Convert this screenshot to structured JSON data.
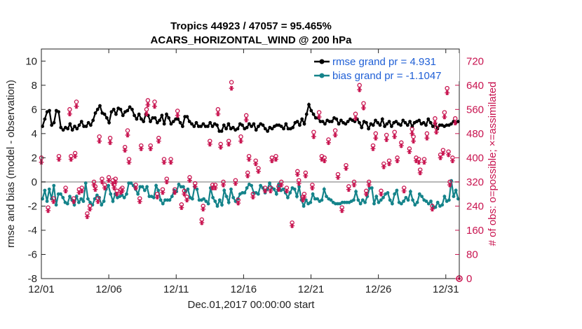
{
  "chart_data": {
    "type": "line",
    "title_line1": "Tropics 44923 / 47057 = 95.465%",
    "title_line2": "ACARS_HORIZONTAL_WIND @ 200 hPa",
    "xlabel": "Dec.01,2017 00:00:00 start",
    "ylabel": "rmse and bias (model - observation)",
    "ylabel_right": "# of obs: o=possible; ×=assimilated",
    "x_ticks": [
      "12/01",
      "12/06",
      "12/11",
      "12/16",
      "12/21",
      "12/26",
      "12/31"
    ],
    "x_tick_days": [
      0,
      5,
      10,
      15,
      20,
      25,
      30
    ],
    "xlim": [
      0,
      31
    ],
    "ylim": [
      -8,
      11
    ],
    "y_ticks": [
      "-8",
      "-6",
      "-4",
      "-2",
      "0",
      "2",
      "4",
      "6",
      "8",
      "10"
    ],
    "y2lim": [
      0,
      760
    ],
    "y2_ticks": [
      "0",
      "80",
      "160",
      "240",
      "320",
      "400",
      "480",
      "560",
      "640",
      "720"
    ],
    "legend": [
      "rmse grand pr = 4.931",
      "bias grand pr = -1.1047"
    ],
    "series": [
      {
        "name": "rmse",
        "color": "#000000",
        "values": [
          4.6,
          5.2,
          5.8,
          5.9,
          4.7,
          4.9,
          5.9,
          5.8,
          4.5,
          4.3,
          4.5,
          4.4,
          4.8,
          4.3,
          4.6,
          4.4,
          4.7,
          5.0,
          4.6,
          4.6,
          4.9,
          4.7,
          5.1,
          5.7,
          6.0,
          6.3,
          5.7,
          5.6,
          5.3,
          4.9,
          5.8,
          6.0,
          5.6,
          6.1,
          6.0,
          5.5,
          5.8,
          5.9,
          6.2,
          6.0,
          5.5,
          5.2,
          5.6,
          5.2,
          5.0,
          5.6,
          5.5,
          5.0,
          5.3,
          5.3,
          4.9,
          5.1,
          5.5,
          4.8,
          5.6,
          5.3,
          4.8,
          5.0,
          5.2,
          5.2,
          4.9,
          4.6,
          5.4,
          5.4,
          5.0,
          4.8,
          4.6,
          4.9,
          4.6,
          4.6,
          4.8,
          4.6,
          4.6,
          4.9,
          4.6,
          4.8,
          4.7,
          4.2,
          4.2,
          4.7,
          4.4,
          4.8,
          4.4,
          4.5,
          4.3,
          4.4,
          4.8,
          4.7,
          4.4,
          4.5,
          4.8,
          4.6,
          4.8,
          4.3,
          4.6,
          4.8,
          4.7,
          4.4,
          4.2,
          4.5,
          4.4,
          4.6,
          4.7,
          4.7,
          4.6,
          4.4,
          4.8,
          4.4,
          4.4,
          4.5,
          4.9,
          5.0,
          4.7,
          5.2,
          4.8,
          5.6,
          6.4,
          5.9,
          5.6,
          5.3,
          5.3,
          5.0,
          5.0,
          4.8,
          5.1,
          5.0,
          5.0,
          5.3,
          5.2,
          4.8,
          5.1,
          4.9,
          4.8,
          5.0,
          5.2,
          5.1,
          5.0,
          5.2,
          4.9,
          4.5,
          5.0,
          4.9,
          4.4,
          4.8,
          4.7,
          5.1,
          4.9,
          4.7,
          5.2,
          4.6,
          4.8,
          5.0,
          4.6,
          4.9,
          5.0,
          4.8,
          4.7,
          5.1,
          4.9,
          4.7,
          5.0,
          4.6,
          4.9,
          5.0,
          5.1,
          4.8,
          4.9,
          4.7,
          5.2,
          4.9,
          4.6,
          4.8,
          4.4,
          4.7,
          4.7,
          4.6,
          4.7,
          4.7,
          4.8,
          5.0,
          4.9,
          5.0
        ]
      },
      {
        "name": "bias",
        "color": "#14838a",
        "values": [
          -1.4,
          -0.7,
          -1.6,
          -0.6,
          -1.4,
          -0.3,
          -1.9,
          -1.0,
          -1.0,
          -1.3,
          -1.7,
          -1.8,
          -1.2,
          -1.5,
          -1.9,
          -1.2,
          -1.7,
          -1.4,
          -1.6,
          -0.1,
          -1.4,
          -1.7,
          -1.9,
          -1.4,
          -1.1,
          -1.3,
          -1.9,
          -1.6,
          -0.6,
          -0.3,
          -1.0,
          -1.6,
          -1.0,
          -1.3,
          -1.2,
          -1.1,
          -1.3,
          -1.0,
          -0.1,
          -0.1,
          -0.3,
          -0.6,
          -1.0,
          -0.4,
          -0.4,
          -0.7,
          -0.4,
          -1.2,
          -1.2,
          -1.3,
          -0.3,
          -0.7,
          -1.5,
          -1.8,
          -1.5,
          -1.5,
          -1.5,
          -1.2,
          -0.7,
          -0.8,
          -0.2,
          -0.4,
          -0.4,
          -0.8,
          -0.6,
          -1.3,
          -1.4,
          -0.4,
          -0.6,
          -1.5,
          -1.5,
          -1.4,
          -1.6,
          -1.8,
          -0.5,
          -1.3,
          -1.6,
          -2.0,
          -1.5,
          -1.9,
          -0.7,
          -1.2,
          -1.7,
          -0.6,
          -1.3,
          -1.6,
          -1.4,
          -1.0,
          -0.9,
          -0.9,
          -0.5,
          -0.2,
          -0.3,
          -0.9,
          -0.9,
          -1.0,
          -0.3,
          -0.5,
          -0.9,
          -0.6,
          -0.1,
          -0.5,
          -0.6,
          -1.0,
          -0.2,
          -0.7,
          -0.6,
          -0.9,
          -1.3,
          -0.9,
          -0.5,
          -0.6,
          -1.2,
          -0.4,
          -1.5,
          -2.0,
          -1.5,
          -1.8,
          -1.7,
          -1.0,
          -1.4,
          -1.4,
          -1.6,
          -1.5,
          -0.6,
          -1.2,
          -1.4,
          -1.5,
          -1.7,
          -1.8,
          -1.8,
          -1.8,
          -1.7,
          -1.7,
          -1.7,
          -1.7,
          -1.6,
          -1.5,
          -0.8,
          -1.5,
          -1.8,
          -1.5,
          -1.7,
          -1.2,
          -0.5,
          -0.5,
          -1.8,
          -1.2,
          -1.7,
          -1.5,
          -1.3,
          -1.0,
          -0.9,
          -1.5,
          -1.8,
          -1.0,
          -0.7,
          -1.7,
          -1.8,
          -1.6,
          -1.3,
          -1.5,
          -0.8,
          -1.5,
          -1.9,
          -1.7,
          -1.0,
          -1.2,
          -1.5,
          -1.6,
          -1.8,
          -1.6,
          -2.1,
          -2.1,
          -1.7,
          -2.0,
          -1.9,
          -1.2,
          -1.6,
          -1.5,
          0.1,
          -1.2,
          -0.7,
          -1.4
        ]
      }
    ],
    "obs_possible": {
      "name": "possible",
      "color": "#c8134f",
      "marker": "o",
      "times": [
        0.0,
        0.5,
        0.9,
        1.3,
        1.8,
        2.1,
        2.2,
        2.4,
        2.5,
        2.6,
        2.8,
        3.0,
        3.4,
        3.6,
        3.9,
        4.0,
        4.2,
        4.3,
        4.5,
        4.7,
        5.0,
        5.1,
        5.3,
        5.4,
        5.5,
        5.6,
        5.9,
        6.0,
        6.2,
        6.4,
        6.5,
        7.0,
        7.3,
        7.4,
        7.8,
        7.9,
        8.1,
        8.4,
        8.6,
        8.7,
        9.0,
        9.1,
        9.3,
        9.6,
        9.9,
        10.1,
        10.4,
        10.6,
        10.8,
        11.0,
        11.4,
        11.9,
        12.0,
        12.5,
        12.7,
        12.9,
        13.1,
        13.3,
        13.5,
        13.9,
        14.1,
        14.4,
        14.6,
        14.8,
        15.2,
        15.3,
        15.4,
        15.7,
        15.9,
        16.1,
        16.6,
        17.0,
        17.1,
        17.4,
        17.6,
        17.8,
        18.2,
        18.6,
        19.0,
        19.1,
        19.4,
        19.5,
        19.6,
        20.1,
        20.2,
        20.6,
        20.8,
        21.0,
        21.3,
        21.8,
        22.0,
        22.3,
        22.6,
        22.8,
        23.2,
        23.3,
        23.6,
        23.9,
        24.1,
        24.3,
        24.6,
        24.8,
        25.2,
        25.4,
        25.6,
        25.8,
        26.2,
        26.4,
        26.7,
        26.9,
        27.3,
        27.5,
        27.6,
        27.8,
        28.0,
        28.1,
        28.4,
        28.6,
        29.0,
        29.2,
        29.3,
        29.6,
        29.8,
        29.9,
        30.1,
        30.2,
        30.3,
        30.5,
        30.7,
        30.9
      ],
      "values": [
        400,
        235,
        265,
        405,
        300,
        560,
        405,
        265,
        415,
        585,
        295,
        300,
        215,
        240,
        320,
        305,
        265,
        470,
        330,
        310,
        335,
        465,
        325,
        310,
        330,
        290,
        295,
        300,
        435,
        490,
        395,
        310,
        265,
        440,
        560,
        590,
        440,
        585,
        280,
        465,
        295,
        395,
        330,
        395,
        295,
        555,
        245,
        290,
        270,
        335,
        315,
        195,
        240,
        455,
        310,
        310,
        560,
        445,
        320,
        455,
        650,
        325,
        260,
        470,
        540,
        350,
        405,
        280,
        390,
        365,
        300,
        300,
        400,
        405,
        305,
        320,
        300,
        185,
        355,
        325,
        270,
        280,
        350,
        310,
        485,
        550,
        405,
        400,
        460,
        490,
        345,
        235,
        375,
        305,
        320,
        545,
        640,
        580,
        290,
        320,
        440,
        480,
        290,
        380,
        475,
        390,
        485,
        400,
        450,
        300,
        430,
        495,
        470,
        400,
        395,
        360,
        395,
        480,
        240,
        530,
        500,
        410,
        425,
        550,
        630,
        420,
        320,
        400,
        530,
        0
      ],
      "note": "Tracks the red 'o' markers on the right axis."
    },
    "obs_assimilated": {
      "name": "assimilated",
      "color": "#c8134f",
      "marker": "x",
      "times": [
        0.0,
        0.5,
        0.9,
        1.3,
        1.8,
        2.1,
        2.2,
        2.4,
        2.5,
        2.6,
        2.8,
        3.0,
        3.4,
        3.6,
        3.9,
        4.0,
        4.2,
        4.3,
        4.5,
        4.7,
        5.0,
        5.1,
        5.3,
        5.4,
        5.5,
        5.6,
        5.9,
        6.0,
        6.2,
        6.4,
        6.5,
        7.0,
        7.3,
        7.4,
        7.8,
        7.9,
        8.1,
        8.4,
        8.6,
        8.7,
        9.0,
        9.1,
        9.3,
        9.6,
        9.9,
        10.1,
        10.4,
        10.6,
        10.8,
        11.0,
        11.4,
        11.9,
        12.0,
        12.5,
        12.7,
        12.9,
        13.1,
        13.3,
        13.5,
        13.9,
        14.1,
        14.4,
        14.6,
        14.8,
        15.2,
        15.3,
        15.4,
        15.7,
        15.9,
        16.1,
        16.6,
        17.0,
        17.1,
        17.4,
        17.6,
        17.8,
        18.2,
        18.6,
        19.0,
        19.1,
        19.4,
        19.5,
        19.6,
        20.1,
        20.2,
        20.6,
        20.8,
        21.0,
        21.3,
        21.8,
        22.0,
        22.3,
        22.6,
        22.8,
        23.2,
        23.3,
        23.6,
        23.9,
        24.1,
        24.3,
        24.6,
        24.8,
        25.2,
        25.4,
        25.6,
        25.8,
        26.2,
        26.4,
        26.7,
        26.9,
        27.3,
        27.5,
        27.6,
        27.8,
        28.0,
        28.1,
        28.4,
        28.6,
        29.0,
        29.2,
        29.3,
        29.6,
        29.8,
        29.9,
        30.1,
        30.2,
        30.3,
        30.5,
        30.7,
        30.9
      ],
      "values": [
        385,
        225,
        255,
        395,
        290,
        545,
        395,
        255,
        405,
        570,
        285,
        290,
        205,
        230,
        310,
        295,
        255,
        455,
        320,
        300,
        325,
        450,
        315,
        300,
        320,
        280,
        285,
        290,
        425,
        475,
        385,
        300,
        255,
        430,
        545,
        575,
        430,
        570,
        270,
        455,
        285,
        385,
        320,
        385,
        285,
        540,
        235,
        280,
        260,
        325,
        305,
        185,
        230,
        445,
        300,
        300,
        545,
        435,
        310,
        445,
        630,
        315,
        250,
        455,
        525,
        340,
        395,
        270,
        380,
        355,
        290,
        290,
        390,
        395,
        295,
        310,
        290,
        175,
        345,
        315,
        260,
        270,
        340,
        300,
        470,
        535,
        395,
        390,
        450,
        475,
        335,
        225,
        365,
        295,
        310,
        530,
        625,
        565,
        280,
        310,
        430,
        465,
        280,
        370,
        460,
        380,
        470,
        390,
        440,
        290,
        420,
        480,
        455,
        390,
        385,
        350,
        385,
        465,
        230,
        515,
        485,
        400,
        415,
        535,
        615,
        410,
        310,
        390,
        515,
        0
      ]
    }
  }
}
